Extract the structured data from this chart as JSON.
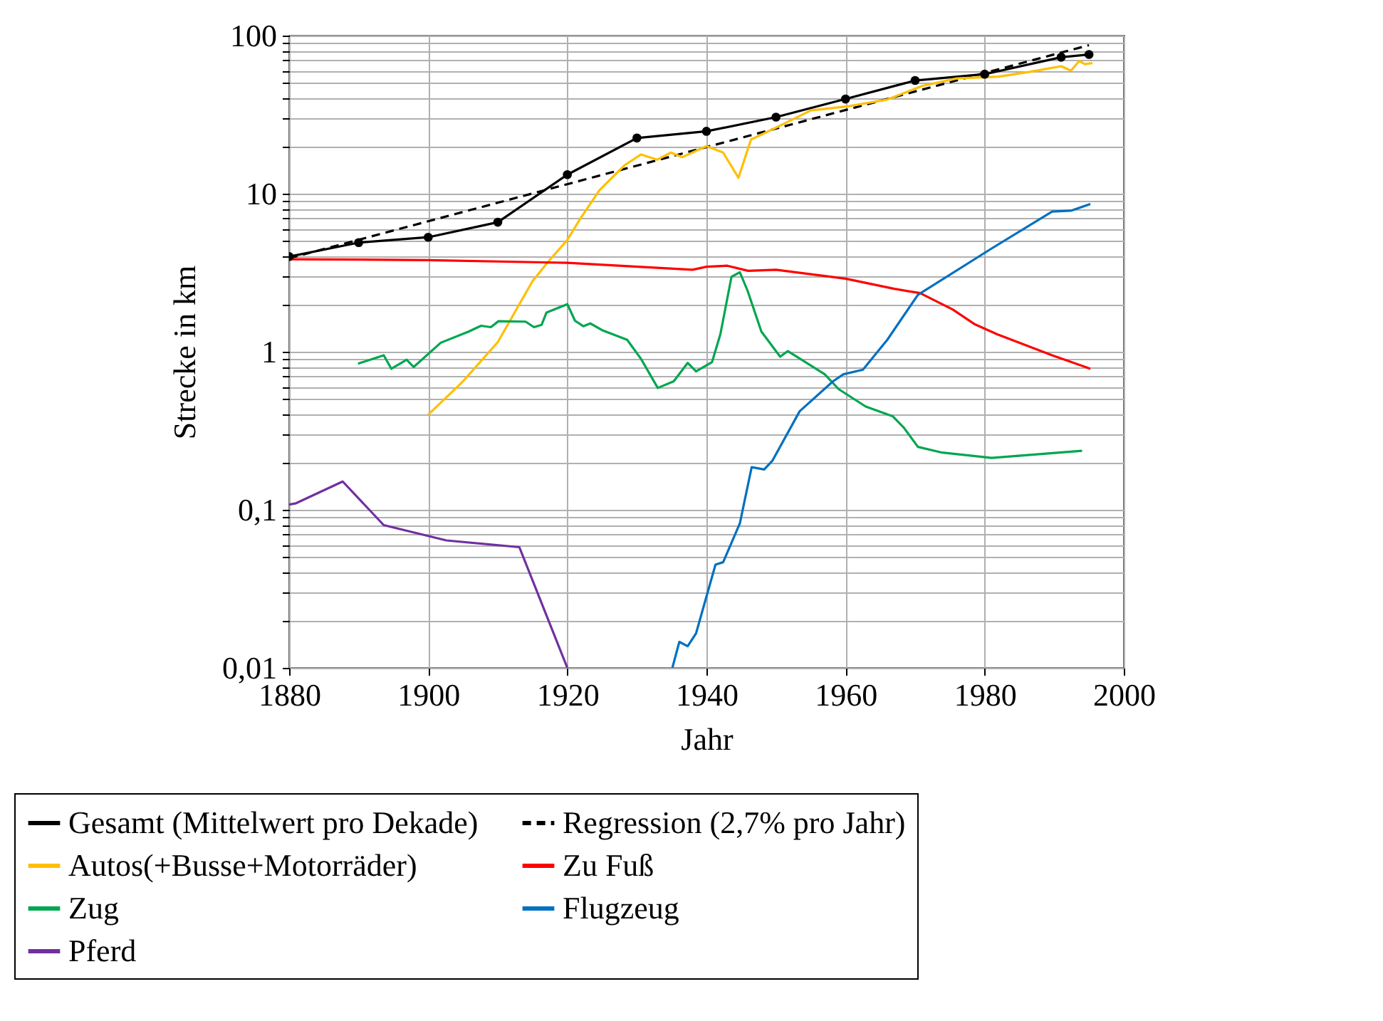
{
  "chart_data": {
    "type": "line",
    "xlabel": "Jahr",
    "ylabel": "Strecke in km",
    "log": true,
    "grid": true,
    "legend": "bottom",
    "xlim": [
      1880,
      2000
    ],
    "xticks": [
      1880,
      1900,
      1920,
      1940,
      1960,
      1980,
      2000
    ],
    "ylim": [
      0.01,
      100
    ],
    "yticks": [
      {
        "value": 0.01,
        "label": "0,01"
      },
      {
        "value": 0.02,
        "label": null
      },
      {
        "value": 0.03,
        "label": null
      },
      {
        "value": 0.04,
        "label": null
      },
      {
        "value": 0.05,
        "label": null
      },
      {
        "value": 0.06,
        "label": null
      },
      {
        "value": 0.07,
        "label": null
      },
      {
        "value": 0.08,
        "label": null
      },
      {
        "value": 0.09,
        "label": null
      },
      {
        "value": 0.1,
        "label": "0,1"
      },
      {
        "value": 0.2,
        "label": null
      },
      {
        "value": 0.3,
        "label": null
      },
      {
        "value": 0.4,
        "label": null
      },
      {
        "value": 0.5,
        "label": null
      },
      {
        "value": 0.6,
        "label": null
      },
      {
        "value": 0.7,
        "label": null
      },
      {
        "value": 0.8,
        "label": null
      },
      {
        "value": 0.9,
        "label": null
      },
      1,
      {
        "value": 2,
        "label": null
      },
      {
        "value": 3,
        "label": null
      },
      {
        "value": 4,
        "label": null
      },
      {
        "value": 5,
        "label": null
      },
      {
        "value": 6,
        "label": null
      },
      {
        "value": 7,
        "label": null
      },
      {
        "value": 8,
        "label": null
      },
      {
        "value": 9,
        "label": null
      },
      10,
      {
        "value": 20,
        "label": null
      },
      {
        "value": 30,
        "label": null
      },
      {
        "value": 40,
        "label": null
      },
      {
        "value": 50,
        "label": null
      },
      {
        "value": 60,
        "label": null
      },
      {
        "value": 70,
        "label": null
      },
      {
        "value": 80,
        "label": null
      },
      {
        "value": 90,
        "label": null
      },
      100
    ],
    "series": [
      {
        "name": "Gesamt (Mittelwert pro Dekade)",
        "color": "#000000",
        "marker": "circle",
        "line_style": "solid",
        "x": [
          1880,
          1890,
          1900,
          1910,
          1920,
          1930,
          1940,
          1950,
          1960,
          1970,
          1980,
          1991,
          1995
        ],
        "values": [
          4.0,
          4.9,
          5.3,
          6.6,
          13.2,
          22.5,
          24.8,
          30.5,
          39.7,
          52,
          57,
          73,
          76
        ]
      },
      {
        "name": "Regression (2,7% pro Jahr)",
        "color": "#000000",
        "marker": "none",
        "line_style": "dashed",
        "x": [
          1880,
          1995
        ],
        "values": [
          3.9,
          87
        ]
      },
      {
        "name": "Autos(+Busse+Motorräder)",
        "color": "#ffbf00",
        "marker": "none",
        "line_style": "solid",
        "x": [
          1900,
          1905,
          1910,
          1915,
          1917,
          1920,
          1922,
          1924.6,
          1928.2,
          1930.6,
          1932.9,
          1934.9,
          1936.5,
          1940,
          1942.4,
          1944.6,
          1946.4,
          1950.2,
          1955,
          1960.5,
          1966,
          1971,
          1976,
          1982,
          1986.5,
          1991,
          1992.4,
          1993.6,
          1994.4,
          1995.5
        ],
        "values": [
          0.4,
          0.65,
          1.15,
          2.8,
          3.6,
          5.1,
          7.1,
          10.5,
          15.1,
          17.7,
          16.4,
          18.2,
          17,
          20,
          18.2,
          12.6,
          22,
          26.4,
          33.6,
          35.8,
          39.4,
          48,
          53.6,
          55,
          59,
          64,
          60,
          69,
          66,
          67
        ]
      },
      {
        "name": "Zu Fuß",
        "color": "#ff0000",
        "marker": "none",
        "line_style": "solid",
        "x": [
          1880,
          1900,
          1920,
          1938,
          1940,
          1943,
          1946,
          1950,
          1960,
          1967,
          1970.7,
          1975.4,
          1978.6,
          1981.8,
          1989.7,
          1995.2
        ],
        "values": [
          3.85,
          3.8,
          3.65,
          3.3,
          3.45,
          3.5,
          3.25,
          3.3,
          2.9,
          2.5,
          2.35,
          1.85,
          1.49,
          1.29,
          0.95,
          0.78
        ]
      },
      {
        "name": "Zug",
        "color": "#00a650",
        "marker": "none",
        "line_style": "solid",
        "x": [
          1889.9,
          1893.6,
          1894.7,
          1896.9,
          1897.9,
          1901.8,
          1905.8,
          1907.6,
          1909,
          1910.1,
          1914,
          1915.2,
          1916.3,
          1917,
          1920,
          1921.1,
          1922.3,
          1923.3,
          1925,
          1928.6,
          1930.6,
          1933,
          1935.3,
          1937.3,
          1938.5,
          1940.8,
          1942,
          1943.6,
          1944.8,
          1945.9,
          1947.9,
          1950.6,
          1951.7,
          1957,
          1959,
          1962.9,
          1966.8,
          1968.4,
          1970.4,
          1973.9,
          1981,
          1994
        ],
        "values": [
          0.84,
          0.95,
          0.78,
          0.89,
          0.8,
          1.14,
          1.34,
          1.46,
          1.43,
          1.56,
          1.55,
          1.43,
          1.48,
          1.77,
          2.0,
          1.57,
          1.45,
          1.51,
          1.37,
          1.19,
          0.9,
          0.59,
          0.65,
          0.85,
          0.75,
          0.86,
          1.29,
          2.98,
          3.18,
          2.44,
          1.34,
          0.93,
          1.01,
          0.72,
          0.58,
          0.45,
          0.39,
          0.33,
          0.25,
          0.23,
          0.213,
          0.236
        ]
      },
      {
        "name": "Flugzeug",
        "color": "#0070c0",
        "marker": "none",
        "line_style": "solid",
        "x": [
          1935.1,
          1936.1,
          1937.3,
          1938.5,
          1941.3,
          1942.4,
          1944.8,
          1946.5,
          1948.3,
          1949.5,
          1953.4,
          1958.2,
          1959.7,
          1962.5,
          1966,
          1970.4,
          1981,
          1989.7,
          1992.4,
          1995.2
        ],
        "values": [
          0.01,
          0.0146,
          0.0137,
          0.0165,
          0.045,
          0.0466,
          0.082,
          0.186,
          0.18,
          0.205,
          0.42,
          0.65,
          0.72,
          0.77,
          1.19,
          2.29,
          4.5,
          7.7,
          7.8,
          8.6
        ]
      },
      {
        "name": "Pferd",
        "color": "#7030a0",
        "marker": "none",
        "line_style": "solid",
        "x": [
          1880,
          1881,
          1887.7,
          1893.6,
          1902.6,
          1913.1,
          1920
        ],
        "values": [
          0.108,
          0.11,
          0.151,
          0.08,
          0.064,
          0.058,
          0.01
        ]
      }
    ]
  }
}
